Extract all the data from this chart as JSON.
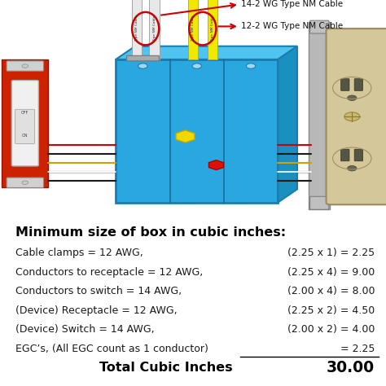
{
  "title": "Minimum size of box in cubic inches:",
  "rows": [
    {
      "label": "Cable clamps = 12 AWG,",
      "formula": "(2.25 x 1) = 2.25",
      "underline": false
    },
    {
      "label": "Conductors to receptacle = 12 AWG,",
      "formula": "(2.25 x 4) = 9.00",
      "underline": false
    },
    {
      "label": "Conductors to switch = 14 AWG,",
      "formula": "(2.00 x 4) = 8.00",
      "underline": false
    },
    {
      "label": "(Device) Receptacle = 12 AWG,",
      "formula": "(2.25 x 2) = 4.50",
      "underline": false
    },
    {
      "label": "(Device) Switch = 14 AWG,",
      "formula": "(2.00 x 2) = 4.00",
      "underline": false
    },
    {
      "label": "EGC’s, (All EGC count as 1 conductor)",
      "formula": "= 2.25",
      "underline": true
    }
  ],
  "total_label": "Total Cubic Inches",
  "total_value": "30.00",
  "label1": "14-2 WG Type NM Cable",
  "label2": "12-2 WG Type NM Cable",
  "bg_color": "#ffffff",
  "title_color": "#000000",
  "text_color": "#1a1a1a",
  "total_color": "#000000",
  "label_fontsize": 9.0,
  "title_fontsize": 11.5,
  "total_fontsize": 11.5,
  "fig_width": 4.74,
  "fig_height": 4.74,
  "box_color": "#29a8e0",
  "box_edge": "#1a7db0",
  "box_dark": "#1a6e99",
  "switch_red": "#cc2200",
  "switch_gray": "#d0d0d0",
  "switch_dark": "#aaaaaa",
  "recep_face": "#d4c89a",
  "recep_bracket": "#b8b8b8",
  "wire_colors": [
    "#1a1a1a",
    "#ffffff",
    "#d4a000",
    "#1a1a1a",
    "#cc0000"
  ],
  "cable_white": "#e8e8e8",
  "cable_yellow": "#f0e800",
  "arrow_color": "#cc0000",
  "label_text_color": "#111111"
}
